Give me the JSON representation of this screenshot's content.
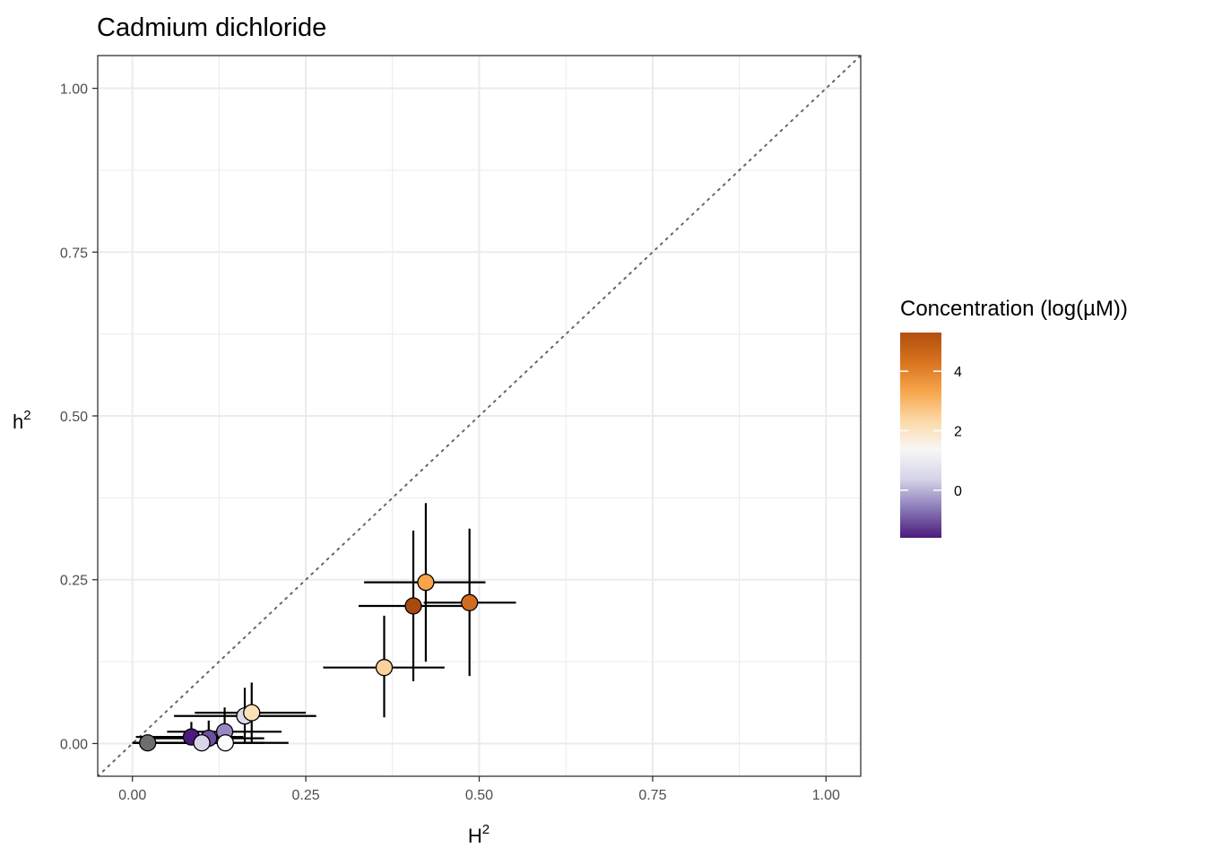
{
  "chart_data": {
    "type": "scatter",
    "title": "Cadmium dichloride",
    "xlabel": "H",
    "xlabel_sup": "2",
    "ylabel": "h",
    "ylabel_sup": "2",
    "xlim": [
      -0.05,
      1.05
    ],
    "ylim": [
      -0.05,
      1.05
    ],
    "x_ticks": [
      0.0,
      0.25,
      0.5,
      0.75,
      1.0
    ],
    "x_tick_labels": [
      "0.00",
      "0.25",
      "0.50",
      "0.75",
      "1.00"
    ],
    "y_ticks": [
      0.0,
      0.25,
      0.5,
      0.75,
      1.0
    ],
    "y_tick_labels": [
      "0.00",
      "0.25",
      "0.50",
      "0.75",
      "1.00"
    ],
    "grid": true,
    "reference_line": {
      "type": "identity",
      "style": "dotted",
      "color": "#666666"
    },
    "legend": {
      "title": "Concentration (log(µM))",
      "position": "right",
      "range": [
        -1.6,
        5.3
      ],
      "ticks": [
        0,
        2,
        4
      ],
      "tick_labels": [
        "0",
        "2",
        "4"
      ],
      "colors": [
        "#4b1a7b",
        "#8a7ab8",
        "#d5d3e9",
        "#f7f7f7",
        "#fcd9a6",
        "#f7a54a",
        "#d8721f",
        "#b1500e"
      ]
    },
    "points": [
      {
        "x": 0.022,
        "y": 0.001,
        "x_err": [
          0.0,
          0.095
        ],
        "y_err": [
          0.0,
          0.01
        ],
        "color": "#6e6e6e"
      },
      {
        "x": 0.085,
        "y": 0.01,
        "x_err": [
          0.005,
          0.16
        ],
        "y_err": [
          0.0,
          0.033
        ],
        "color": "#4b1a7b"
      },
      {
        "x": 0.11,
        "y": 0.008,
        "x_err": [
          0.025,
          0.19
        ],
        "y_err": [
          0.0,
          0.035
        ],
        "color": "#6b50a0"
      },
      {
        "x": 0.133,
        "y": 0.018,
        "x_err": [
          0.05,
          0.215
        ],
        "y_err": [
          0.0,
          0.055
        ],
        "color": "#9989c2"
      },
      {
        "x": 0.1,
        "y": 0.001,
        "x_err": [
          0.0,
          0.19
        ],
        "y_err": [
          0.0,
          0.01
        ],
        "color": "#d9d6ea"
      },
      {
        "x": 0.134,
        "y": 0.001,
        "x_err": [
          0.0,
          0.225
        ],
        "y_err": [
          0.0,
          0.01
        ],
        "color": "#fdfdfd"
      },
      {
        "x": 0.162,
        "y": 0.042,
        "x_err": [
          0.06,
          0.265
        ],
        "y_err": [
          0.0,
          0.085
        ],
        "color": "#dcdaec"
      },
      {
        "x": 0.172,
        "y": 0.047,
        "x_err": [
          0.09,
          0.25
        ],
        "y_err": [
          0.0,
          0.093
        ],
        "color": "#fce1b8"
      },
      {
        "x": 0.363,
        "y": 0.116,
        "x_err": [
          0.275,
          0.45
        ],
        "y_err": [
          0.04,
          0.195
        ],
        "color": "#fdd19b"
      },
      {
        "x": 0.423,
        "y": 0.246,
        "x_err": [
          0.334,
          0.509
        ],
        "y_err": [
          0.125,
          0.367
        ],
        "color": "#f9a34a"
      },
      {
        "x": 0.405,
        "y": 0.21,
        "x_err": [
          0.326,
          0.487
        ],
        "y_err": [
          0.095,
          0.325
        ],
        "color": "#a94a0d"
      },
      {
        "x": 0.486,
        "y": 0.215,
        "x_err": [
          0.42,
          0.553
        ],
        "y_err": [
          0.103,
          0.328
        ],
        "color": "#d36c1e"
      }
    ]
  }
}
